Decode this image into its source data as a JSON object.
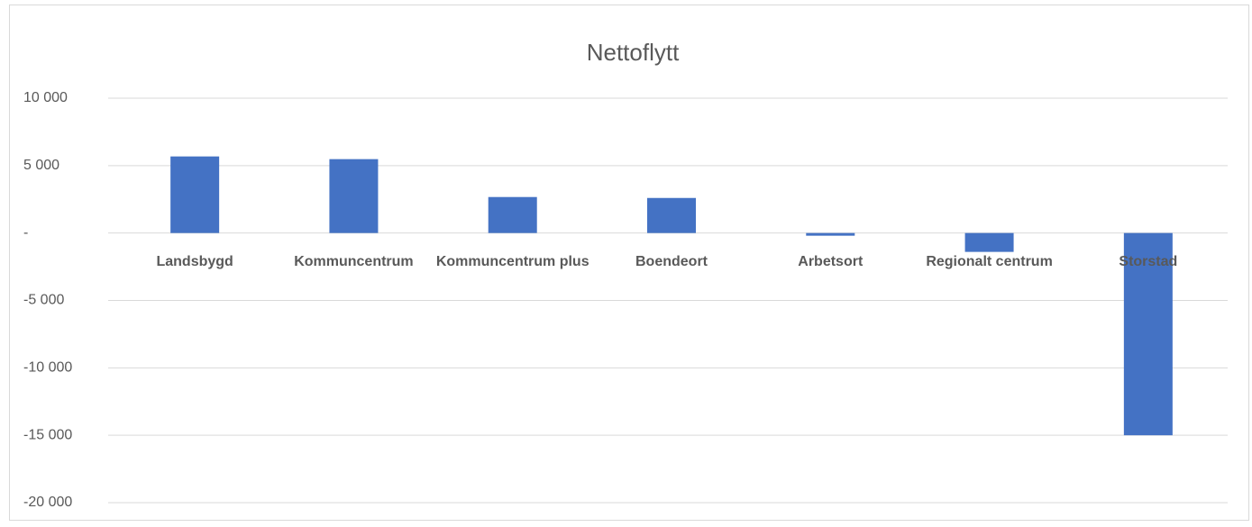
{
  "chart_data": {
    "type": "bar",
    "title": "Nettoflytt",
    "categories": [
      "Landsbygd",
      "Kommuncentrum",
      "Kommuncentrum plus",
      "Boendeort",
      "Arbetsort",
      "Regionalt centrum",
      "Storstad"
    ],
    "values": [
      5680,
      5480,
      2670,
      2600,
      -200,
      -1400,
      -15000
    ],
    "color": "#4472c4",
    "ylim": [
      -20000,
      10000
    ],
    "yticks": [
      {
        "value": -20000,
        "label": "-20 000"
      },
      {
        "value": -15000,
        "label": "-15 000"
      },
      {
        "value": -10000,
        "label": "-10 000"
      },
      {
        "value": -5000,
        "label": "-5 000"
      },
      {
        "value": 0,
        "label": "-"
      },
      {
        "value": 5000,
        "label": "5 000"
      },
      {
        "value": 10000,
        "label": "10 000"
      }
    ],
    "grid": true
  }
}
